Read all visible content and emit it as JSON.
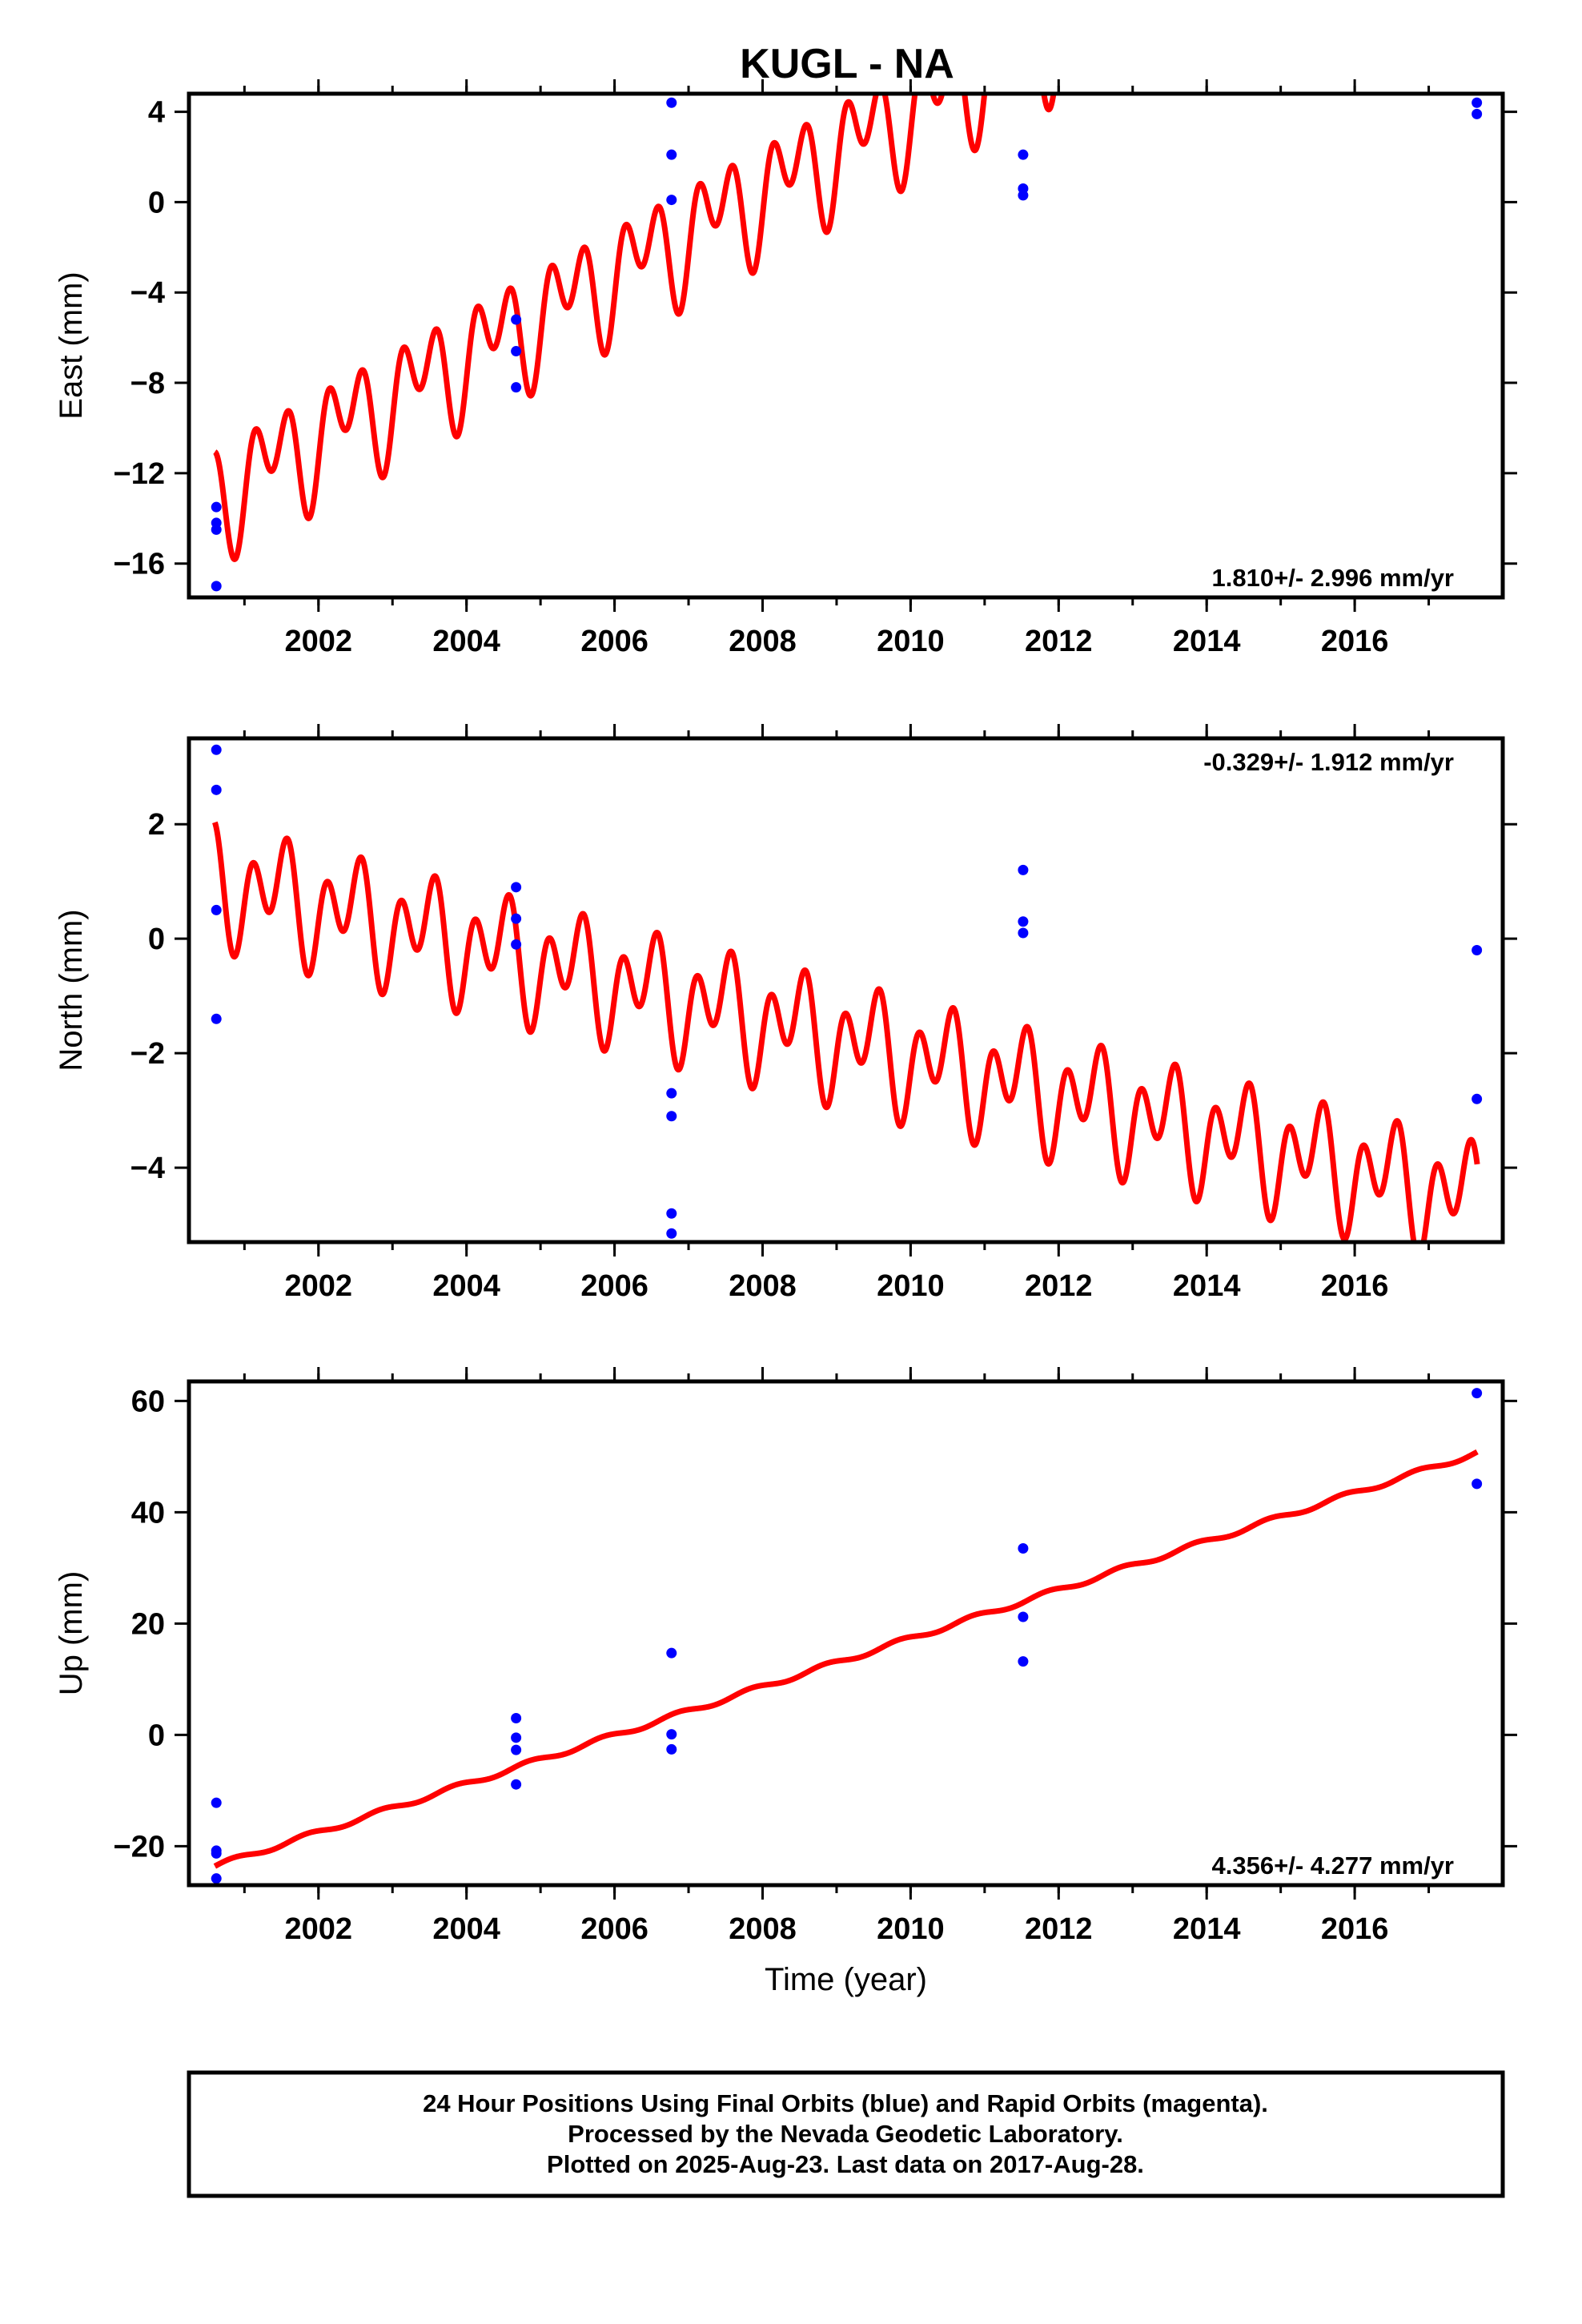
{
  "title": "KUGL - NA",
  "colors": {
    "model": "#ff0000",
    "final": "#0000ff",
    "frame": "#000000"
  },
  "footer": {
    "line1": "24 Hour Positions Using Final Orbits (blue) and Rapid Orbits (magenta).",
    "line2": "Processed by the Nevada Geodetic Laboratory.",
    "line3": "Plotted on 2025-Aug-23. Last data on 2017-Aug-28."
  },
  "chart_data": [
    {
      "type": "scatter",
      "component": "east",
      "ylabel": "East (mm)",
      "xlabel": "",
      "xlim": [
        2000.25,
        2018.0
      ],
      "ylim": [
        -17.5,
        4.8
      ],
      "x_ticks": [
        2002,
        2004,
        2006,
        2008,
        2010,
        2012,
        2014,
        2016
      ],
      "y_ticks": [
        4,
        0,
        -4,
        -8,
        -12,
        -16
      ],
      "rate_label": "1.810+/- 2.996 mm/yr",
      "rate_position": "bottom-right",
      "points": [
        [
          2000.62,
          -13.5
        ],
        [
          2000.62,
          -14.2
        ],
        [
          2000.62,
          -14.5
        ],
        [
          2000.62,
          -17.0
        ],
        [
          2004.67,
          -5.2
        ],
        [
          2004.67,
          -6.6
        ],
        [
          2004.67,
          -8.2
        ],
        [
          2006.77,
          4.4
        ],
        [
          2006.77,
          2.1
        ],
        [
          2006.77,
          0.1
        ],
        [
          2011.52,
          2.1
        ],
        [
          2011.52,
          0.6
        ],
        [
          2011.52,
          0.3
        ],
        [
          2017.65,
          4.4
        ],
        [
          2017.65,
          3.9
        ]
      ],
      "model": {
        "t0": 2000.6,
        "y0": -13.0,
        "slope": 1.81,
        "annual_amp": 1.5,
        "annual_phase": 3.0,
        "semiannual_amp": 1.8,
        "semiannual_phase": 1.3
      }
    },
    {
      "type": "scatter",
      "component": "north",
      "ylabel": "North (mm)",
      "xlabel": "",
      "xlim": [
        2000.25,
        2018.0
      ],
      "ylim": [
        -5.3,
        3.5
      ],
      "x_ticks": [
        2002,
        2004,
        2006,
        2008,
        2010,
        2012,
        2014,
        2016
      ],
      "y_ticks": [
        2,
        0,
        -2,
        -4
      ],
      "rate_label": "-0.329+/- 1.912 mm/yr",
      "rate_position": "top-right",
      "points": [
        [
          2000.62,
          3.3
        ],
        [
          2000.62,
          2.6
        ],
        [
          2000.62,
          0.5
        ],
        [
          2000.62,
          -1.4
        ],
        [
          2004.67,
          0.9
        ],
        [
          2004.67,
          0.35
        ],
        [
          2004.67,
          -0.1
        ],
        [
          2006.77,
          -2.7
        ],
        [
          2006.77,
          -3.1
        ],
        [
          2006.77,
          -4.8
        ],
        [
          2006.77,
          -5.15
        ],
        [
          2011.52,
          1.2
        ],
        [
          2011.52,
          0.3
        ],
        [
          2011.52,
          0.1
        ],
        [
          2017.65,
          -0.2
        ],
        [
          2017.65,
          -2.8
        ]
      ],
      "model": {
        "t0": 2000.6,
        "y0": 1.0,
        "slope": -0.329,
        "annual_amp": 0.55,
        "annual_phase": 2.6,
        "semiannual_amp": 0.75,
        "semiannual_phase": 1.6
      }
    },
    {
      "type": "scatter",
      "component": "up",
      "ylabel": "Up (mm)",
      "xlabel": "Time (year)",
      "xlim": [
        2000.25,
        2018.0
      ],
      "ylim": [
        -27.0,
        63.5
      ],
      "x_ticks": [
        2002,
        2004,
        2006,
        2008,
        2010,
        2012,
        2014,
        2016
      ],
      "y_ticks": [
        60,
        40,
        20,
        0,
        -20
      ],
      "rate_label": "4.356+/- 4.277 mm/yr",
      "rate_position": "bottom-right",
      "points": [
        [
          2000.62,
          -12.2
        ],
        [
          2000.62,
          -20.8
        ],
        [
          2000.62,
          -21.3
        ],
        [
          2000.62,
          -25.8
        ],
        [
          2004.67,
          3.0
        ],
        [
          2004.67,
          -0.5
        ],
        [
          2004.67,
          -2.7
        ],
        [
          2004.67,
          -8.9
        ],
        [
          2006.77,
          14.7
        ],
        [
          2006.77,
          0.1
        ],
        [
          2006.77,
          -2.6
        ],
        [
          2011.52,
          33.5
        ],
        [
          2011.52,
          21.2
        ],
        [
          2011.52,
          13.2
        ],
        [
          2017.65,
          61.4
        ],
        [
          2017.65,
          45.1
        ]
      ],
      "model": {
        "t0": 2000.6,
        "y0": -23.6,
        "slope": 4.356,
        "annual_amp": 0.45,
        "annual_phase": 0.0,
        "semiannual_amp": 0.0,
        "semiannual_phase": 0.0
      }
    }
  ]
}
